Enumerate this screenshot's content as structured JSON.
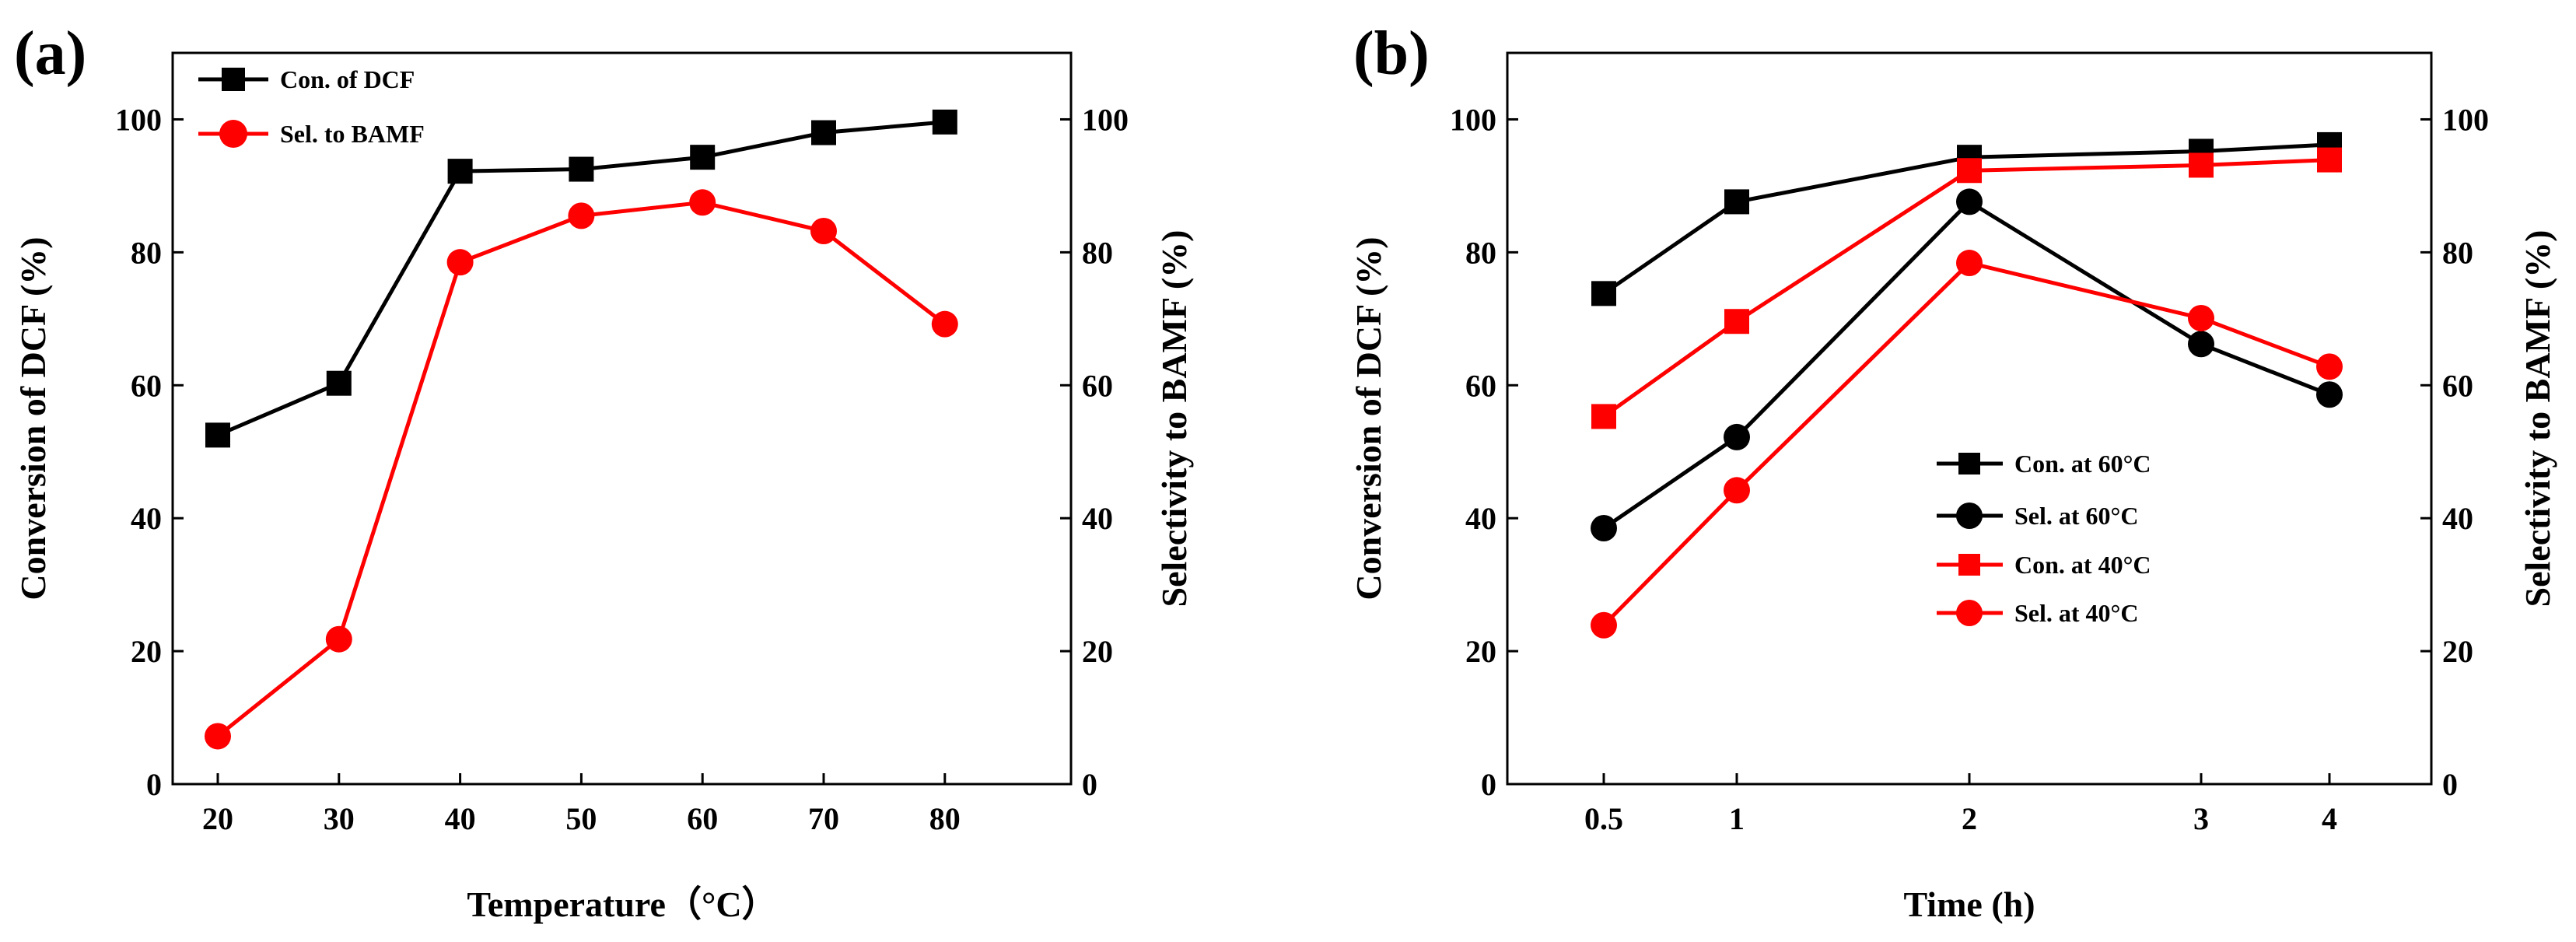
{
  "chart_data": [
    {
      "id": "a",
      "panel_label": "(a)",
      "type": "line",
      "x": [
        20,
        30,
        40,
        50,
        60,
        70,
        80
      ],
      "xticks": [
        "20",
        "30",
        "40",
        "50",
        "60",
        "70",
        "80"
      ],
      "xlabel": "Temperature（°C）",
      "ylabel_left": "Conversion of DCF (%)",
      "ylabel_right": "Selectivity to BAMF (%)",
      "ylim": [
        0,
        110
      ],
      "yticks": [
        "0",
        "20",
        "40",
        "60",
        "80",
        "100"
      ],
      "legend_position": "top-left",
      "series": [
        {
          "name": "Con. of DCF",
          "marker": "square",
          "color": "#000000",
          "values": [
            52.5,
            60.3,
            92.2,
            92.5,
            94.3,
            98.0,
            99.6
          ]
        },
        {
          "name": "Sel. to BAMF",
          "marker": "circle",
          "color": "#ff0000",
          "values": [
            7.2,
            21.8,
            78.5,
            85.5,
            87.5,
            83.2,
            69.2
          ]
        }
      ]
    },
    {
      "id": "b",
      "panel_label": "(b)",
      "type": "line",
      "x": [
        0.5,
        1,
        2,
        3,
        4
      ],
      "xticks": [
        "0.5",
        "1",
        "2",
        "3",
        "4"
      ],
      "xlabel": "Time (h)",
      "ylabel_left": "Conversion of DCF (%)",
      "ylabel_right": "Selectivity to BAMF (%)",
      "ylim": [
        0,
        110
      ],
      "yticks": [
        "0",
        "20",
        "40",
        "60",
        "80",
        "100"
      ],
      "legend_position": "center-left",
      "series": [
        {
          "name": "Con. at 60°C",
          "marker": "square",
          "color": "#000000",
          "values": [
            73.8,
            87.6,
            94.3,
            95.2,
            96.2
          ]
        },
        {
          "name": "Sel. at 60°C",
          "marker": "circle",
          "color": "#000000",
          "values": [
            38.5,
            52.2,
            87.6,
            66.2,
            58.6
          ]
        },
        {
          "name": "Con. at 40°C",
          "marker": "square",
          "color": "#ff0000",
          "values": [
            55.3,
            69.6,
            92.3,
            93.1,
            93.9
          ]
        },
        {
          "name": "Sel. at 40°C",
          "marker": "circle",
          "color": "#ff0000",
          "values": [
            23.9,
            44.2,
            78.4,
            70.1,
            62.8
          ]
        }
      ]
    }
  ]
}
